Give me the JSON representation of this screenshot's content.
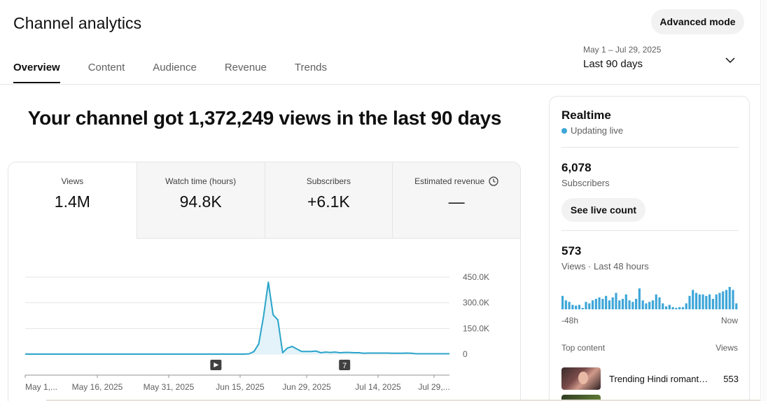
{
  "header": {
    "title": "Channel analytics",
    "advanced_mode_label": "Advanced mode"
  },
  "tabs": [
    {
      "label": "Overview",
      "active": true
    },
    {
      "label": "Content",
      "active": false
    },
    {
      "label": "Audience",
      "active": false
    },
    {
      "label": "Revenue",
      "active": false
    },
    {
      "label": "Trends",
      "active": false
    }
  ],
  "date_picker": {
    "range": "May 1 – Jul 29, 2025",
    "label": "Last 90 days",
    "icon": "chevron-down-icon"
  },
  "headline": "Your channel got 1,372,249 views in the last 90 days",
  "metrics": [
    {
      "label": "Views",
      "value": "1.4M"
    },
    {
      "label": "Watch time (hours)",
      "value": "94.8K"
    },
    {
      "label": "Subscribers",
      "value": "+6.1K"
    },
    {
      "label": "Estimated revenue",
      "value": "—",
      "icon": "clock-icon"
    }
  ],
  "chart_data": {
    "type": "area",
    "ylabel_ticks": [
      "450.0K",
      "300.0K",
      "150.0K",
      "0"
    ],
    "ylim": [
      0,
      450000
    ],
    "x_tick_labels": [
      "May 1,...",
      "May 16, 2025",
      "May 31, 2025",
      "Jun 15, 2025",
      "Jun 29, 2025",
      "Jul 14, 2025",
      "Jul 29,..."
    ],
    "series": [
      {
        "values": [
          0,
          0,
          0,
          0,
          0,
          0,
          0,
          0,
          0,
          0,
          0,
          0,
          0,
          0,
          0,
          0,
          0,
          0,
          0,
          0,
          0,
          0,
          0,
          0,
          0,
          0,
          0,
          0,
          0,
          0,
          0,
          0,
          0,
          0,
          0,
          0,
          0,
          0,
          0,
          0,
          0,
          0,
          0,
          0,
          0,
          0,
          0,
          2000,
          15000,
          60000,
          220000,
          420000,
          230000,
          200000,
          8000,
          35000,
          45000,
          30000,
          15000,
          15000,
          15000,
          18000,
          8000,
          12000,
          10000,
          12000,
          8000,
          10000,
          10000,
          8000,
          8000,
          5000,
          6000,
          6000,
          6000,
          6000,
          6000,
          5000,
          5000,
          5000,
          6000,
          5000,
          2000,
          2000,
          2000,
          2000,
          2000,
          2000,
          2000,
          2000
        ]
      }
    ],
    "markers": [
      {
        "label": "",
        "icon": "play-icon",
        "index": 40
      },
      {
        "label": "7",
        "index": 67
      }
    ],
    "grid": true,
    "color": "#2ba4c9"
  },
  "realtime": {
    "title": "Realtime",
    "status": "Updating live",
    "subscribers_value": "6,078",
    "subscribers_label": "Subscribers",
    "live_count_label": "See live count",
    "views_value": "573",
    "views_label": "Views · Last 48 hours",
    "spark_values": [
      18,
      12,
      10,
      6,
      5,
      6,
      2,
      10,
      8,
      12,
      14,
      16,
      14,
      18,
      12,
      16,
      22,
      12,
      14,
      20,
      12,
      10,
      14,
      28,
      12,
      8,
      10,
      12,
      20,
      16,
      8,
      4,
      6,
      3,
      2,
      3,
      3,
      8,
      18,
      26,
      22,
      20,
      20,
      18,
      20,
      14,
      20,
      22,
      24,
      26,
      30,
      26,
      8
    ],
    "spark_start_label": "-48h",
    "spark_end_label": "Now",
    "top_content_label": "Top content",
    "top_views_label": "Views",
    "top_items": [
      {
        "title": "Trending Hindi romant…",
        "views": "553"
      }
    ],
    "accent": "#3ea6d8"
  }
}
